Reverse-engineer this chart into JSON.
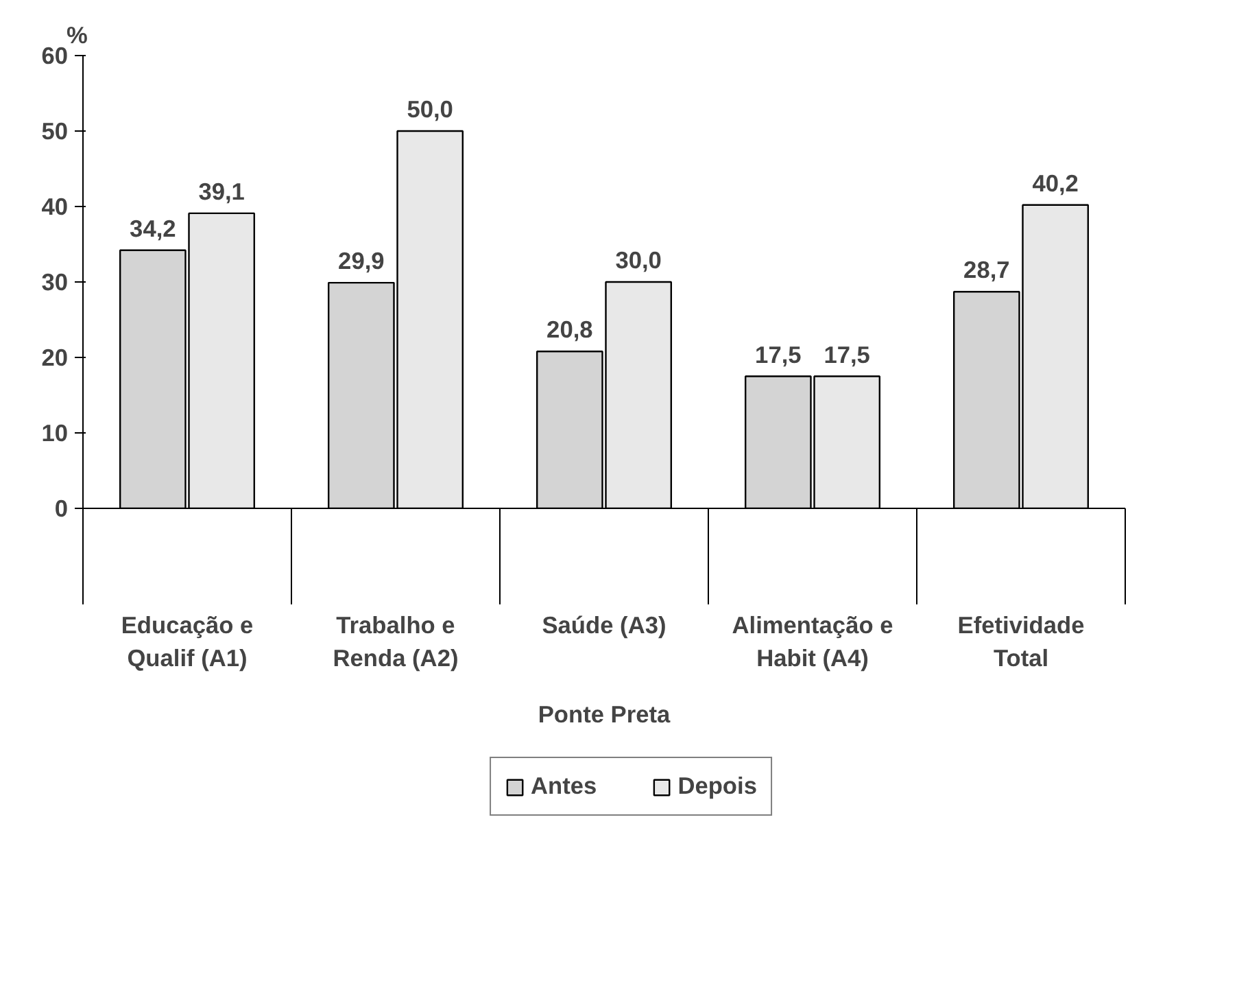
{
  "chart_data": {
    "type": "bar",
    "ylabel": "%",
    "xlabel": "Ponte Preta",
    "categories": [
      "Educação e\nQualif (A1)",
      "Trabalho e\nRenda (A2)",
      "Saúde (A3)",
      "Alimentação e\nHabit (A4)",
      "Efetividade\nTotal"
    ],
    "series": [
      {
        "name": "Antes",
        "color": "#d4d4d4",
        "values": [
          34.2,
          29.9,
          20.8,
          17.5,
          28.7
        ],
        "value_labels": [
          "34,2",
          "29,9",
          "20,8",
          "17,5",
          "28,7"
        ]
      },
      {
        "name": "Depois",
        "color": "#e8e8e8",
        "values": [
          39.1,
          50.0,
          30.0,
          17.5,
          40.2
        ],
        "value_labels": [
          "39,1",
          "50,0",
          "30,0",
          "17,5",
          "40,2"
        ]
      }
    ],
    "ylim": [
      0,
      60
    ],
    "yticks": [
      0,
      10,
      20,
      30,
      40,
      50,
      60
    ],
    "grid": false,
    "legend": "bottom"
  }
}
